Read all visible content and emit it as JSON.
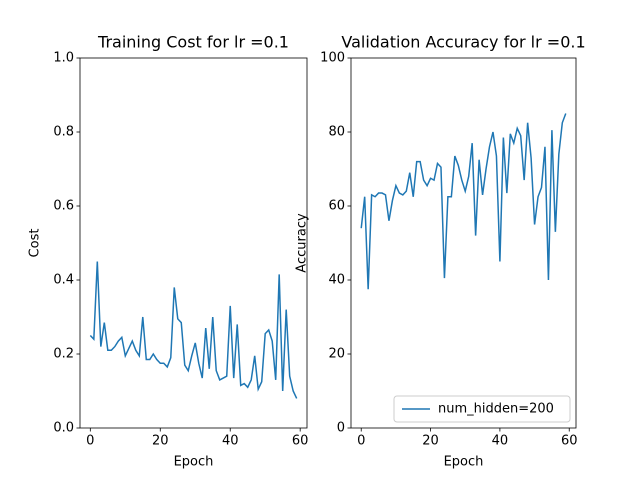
{
  "chart_data": [
    {
      "type": "line",
      "title": "Training Cost for lr =0.1",
      "xlabel": "Epoch",
      "ylabel": "Cost",
      "x": [
        0,
        1,
        2,
        3,
        4,
        5,
        6,
        7,
        8,
        9,
        10,
        11,
        12,
        13,
        14,
        15,
        16,
        17,
        18,
        19,
        20,
        21,
        22,
        23,
        24,
        25,
        26,
        27,
        28,
        29,
        30,
        31,
        32,
        33,
        34,
        35,
        36,
        37,
        38,
        39,
        40,
        41,
        42,
        43,
        44,
        45,
        46,
        47,
        48,
        49,
        50,
        51,
        52,
        53,
        54,
        55,
        56,
        57,
        58,
        59
      ],
      "series": [
        {
          "color": "#1f77b4",
          "values": [
            0.25,
            0.24,
            0.45,
            0.22,
            0.285,
            0.21,
            0.21,
            0.22,
            0.235,
            0.245,
            0.195,
            0.215,
            0.235,
            0.21,
            0.195,
            0.3,
            0.185,
            0.185,
            0.2,
            0.185,
            0.175,
            0.175,
            0.165,
            0.19,
            0.38,
            0.295,
            0.285,
            0.17,
            0.155,
            0.195,
            0.23,
            0.175,
            0.135,
            0.27,
            0.16,
            0.3,
            0.155,
            0.13,
            0.135,
            0.14,
            0.33,
            0.135,
            0.28,
            0.115,
            0.12,
            0.11,
            0.13,
            0.195,
            0.105,
            0.125,
            0.255,
            0.265,
            0.235,
            0.13,
            0.415,
            0.1,
            0.32,
            0.14,
            0.1,
            0.08
          ]
        }
      ],
      "xlim": [
        -2.95,
        61.95
      ],
      "xticks": [
        0,
        20,
        40,
        60
      ],
      "ylim": [
        0,
        1
      ],
      "yticks": [
        {
          "value": 0,
          "label": "0.0"
        },
        0.2,
        0.4,
        0.6,
        0.8,
        {
          "value": 1,
          "label": "1.0"
        }
      ]
    },
    {
      "type": "line",
      "title": "Validation Accuracy for lr =0.1",
      "xlabel": "Epoch",
      "ylabel": "Accuracy",
      "x": [
        0,
        1,
        2,
        3,
        4,
        5,
        6,
        7,
        8,
        9,
        10,
        11,
        12,
        13,
        14,
        15,
        16,
        17,
        18,
        19,
        20,
        21,
        22,
        23,
        24,
        25,
        26,
        27,
        28,
        29,
        30,
        31,
        32,
        33,
        34,
        35,
        36,
        37,
        38,
        39,
        40,
        41,
        42,
        43,
        44,
        45,
        46,
        47,
        48,
        49,
        50,
        51,
        52,
        53,
        54,
        55,
        56,
        57,
        58,
        59
      ],
      "series": [
        {
          "name": "num_hidden=200",
          "color": "#1f77b4",
          "values": [
            54,
            62.5,
            37.5,
            63,
            62.5,
            63.5,
            63.5,
            63,
            56,
            61.5,
            65.5,
            63.5,
            63,
            64,
            69,
            62.5,
            72,
            72,
            67,
            65.5,
            67.5,
            67,
            71.5,
            70.5,
            40.5,
            62.5,
            62.5,
            73.5,
            71,
            67,
            64,
            68,
            77,
            52,
            72.5,
            63,
            70,
            76,
            80,
            73.5,
            45,
            78.5,
            63.5,
            79.5,
            77,
            81,
            79,
            67,
            82.5,
            73,
            55,
            62.5,
            65,
            76,
            40,
            80.5,
            53,
            74,
            82.5,
            85
          ]
        }
      ],
      "xlim": [
        -2.95,
        61.95
      ],
      "xticks": [
        0,
        20,
        40,
        60
      ],
      "ylim": [
        0,
        100
      ],
      "yticks": [
        0,
        20,
        40,
        60,
        80,
        100
      ],
      "legend": "lower right"
    }
  ]
}
